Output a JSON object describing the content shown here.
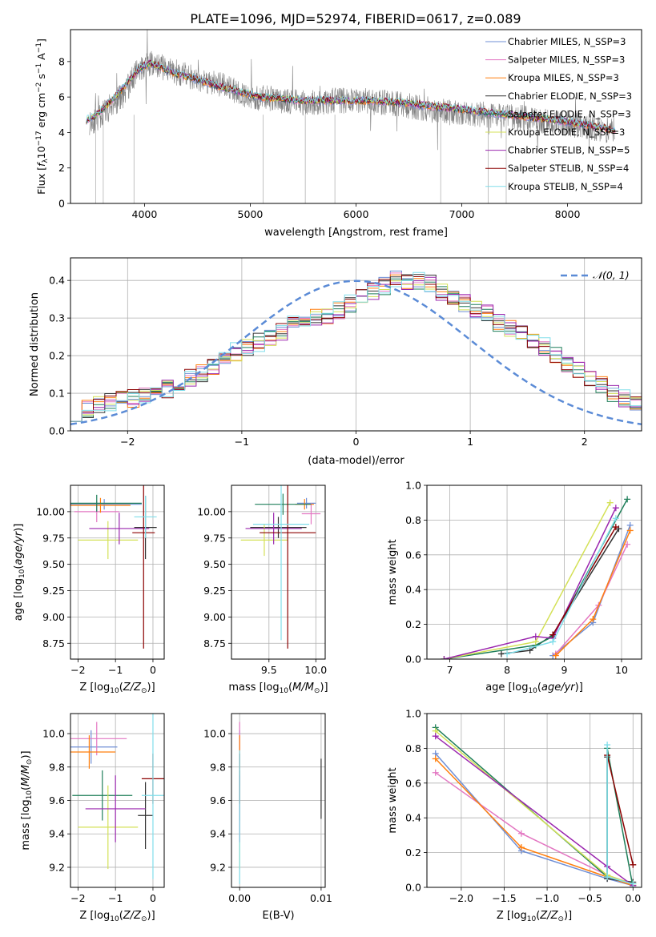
{
  "figure_title": "PLATE=1096, MJD=52974, FIBERID=0617, z=0.089",
  "model_colors": [
    "#6f8fd6",
    "#e377c2",
    "#ff7f0e",
    "#333333",
    "#1f7f5a",
    "#d4e157",
    "#9b27af",
    "#8b0000",
    "#80deea"
  ],
  "chart_data": [
    {
      "id": "spectrum",
      "type": "line",
      "title": "PLATE=1096, MJD=52974, FIBERID=0617, z=0.089",
      "xlabel": "wavelength [Angstrom, rest frame]",
      "ylabel": "Flux [f_λ10^-17 erg cm^-2 s^-1 A^-1]",
      "xlim": [
        3300,
        8700
      ],
      "ylim": [
        0,
        9.8
      ],
      "xticks": [
        "4000",
        "5000",
        "6000",
        "7000",
        "8000"
      ],
      "yticks": [
        "0",
        "2",
        "4",
        "6",
        "8"
      ],
      "grid": false,
      "legend_position": "top-right",
      "data_curve": {
        "name": "data",
        "color": "#808080",
        "x": [
          3500,
          3600,
          3700,
          3800,
          3900,
          4000,
          4100,
          4200,
          4300,
          4400,
          4500,
          4600,
          4700,
          4800,
          4900,
          5000,
          5200,
          5400,
          5600,
          5800,
          6000,
          6200,
          6400,
          6600,
          6800,
          7000,
          7200,
          7400,
          7600,
          7800,
          8000,
          8200,
          8400
        ],
        "y": [
          4.6,
          5.0,
          5.6,
          6.1,
          7.2,
          7.8,
          7.9,
          7.6,
          7.4,
          7.2,
          7.0,
          6.9,
          6.7,
          6.5,
          6.2,
          6.0,
          5.9,
          5.7,
          5.7,
          5.8,
          5.8,
          5.7,
          5.6,
          5.4,
          5.2,
          5.1,
          5.0,
          4.9,
          4.8,
          4.6,
          4.5,
          4.3,
          4.1
        ]
      },
      "model_curve": {
        "x": [
          3450,
          3550,
          3650,
          3750,
          3850,
          3950,
          4050,
          4150,
          4300,
          4500,
          4700,
          4900,
          5100,
          5300,
          5500,
          5800,
          6100,
          6400,
          6700,
          7000,
          7300,
          7600,
          7900,
          8200,
          8450
        ],
        "y": [
          4.7,
          5.0,
          5.6,
          6.2,
          6.9,
          7.6,
          7.9,
          7.7,
          7.3,
          7.0,
          6.6,
          6.3,
          6.0,
          5.9,
          5.8,
          5.8,
          5.8,
          5.7,
          5.5,
          5.3,
          5.1,
          4.9,
          4.7,
          4.4,
          4.1
        ]
      },
      "series": [
        {
          "name": "Chabrier MILES, N_SSP=3",
          "color": "#6f8fd6"
        },
        {
          "name": "Salpeter MILES, N_SSP=3",
          "color": "#e377c2"
        },
        {
          "name": "Kroupa MILES, N_SSP=3",
          "color": "#ff7f0e"
        },
        {
          "name": "Chabrier ELODIE, N_SSP=3",
          "color": "#333333"
        },
        {
          "name": "Salpeter ELODIE, N_SSP=3",
          "color": "#1f7f5a"
        },
        {
          "name": "Kroupa ELODIE, N_SSP=3",
          "color": "#d4e157"
        },
        {
          "name": "Chabrier STELIB, N_SSP=5",
          "color": "#9b27af"
        },
        {
          "name": "Salpeter STELIB, N_SSP=4",
          "color": "#8b0000"
        },
        {
          "name": "Kroupa STELIB, N_SSP=4",
          "color": "#80deea"
        }
      ]
    },
    {
      "id": "residuals",
      "type": "line",
      "xlabel": "(data-model)/error",
      "ylabel": "Normed distribution",
      "xlim": [
        -2.5,
        2.5
      ],
      "ylim": [
        0,
        0.46
      ],
      "xticks": [
        "−2",
        "−1",
        "0",
        "1",
        "2"
      ],
      "yticks": [
        "0.0",
        "0.1",
        "0.2",
        "0.3",
        "0.4"
      ],
      "grid": true,
      "legend_position": "top-right",
      "reference": {
        "name": "𝒩(0, 1)",
        "mean": 0,
        "sigma": 1,
        "color": "#5b8bd6"
      },
      "histogram": {
        "bin_width": 0.1,
        "x_start": -2.5,
        "approx_heights": [
          0.05,
          0.06,
          0.07,
          0.075,
          0.08,
          0.085,
          0.09,
          0.1,
          0.11,
          0.125,
          0.14,
          0.155,
          0.175,
          0.19,
          0.21,
          0.22,
          0.235,
          0.25,
          0.265,
          0.28,
          0.29,
          0.3,
          0.31,
          0.32,
          0.34,
          0.36,
          0.37,
          0.385,
          0.4,
          0.4,
          0.4,
          0.39,
          0.37,
          0.36,
          0.34,
          0.32,
          0.31,
          0.29,
          0.27,
          0.255,
          0.24,
          0.225,
          0.2,
          0.18,
          0.16,
          0.14,
          0.12,
          0.1,
          0.085,
          0.07
        ]
      }
    },
    {
      "id": "age-vs-Z",
      "type": "scatter",
      "xlabel": "Z [log10(Z/Z⊙)]",
      "ylabel": "age  [log10(age/yr)]",
      "xlim": [
        -2.2,
        0.3
      ],
      "ylim": [
        8.6,
        10.25
      ],
      "xticks": [
        "−2",
        "−1",
        "0"
      ],
      "yticks": [
        "8.75",
        "9.00",
        "9.25",
        "9.50",
        "9.75",
        "10.00"
      ],
      "grid": true,
      "points": [
        {
          "x": -1.3,
          "y": 10.07,
          "xerr": 1.0,
          "yerr": 0.05
        },
        {
          "x": -1.5,
          "y": 10.0,
          "xerr": 0.6,
          "yerr": 0.1
        },
        {
          "x": -1.4,
          "y": 10.06,
          "xerr": 0.8,
          "yerr": 0.07
        },
        {
          "x": -0.2,
          "y": 9.85,
          "xerr": 0.3,
          "yerr": 0.3
        },
        {
          "x": -1.5,
          "y": 10.08,
          "xerr": 1.2,
          "yerr": 0.08
        },
        {
          "x": -1.2,
          "y": 9.73,
          "xerr": 0.8,
          "yerr": 0.18
        },
        {
          "x": -0.9,
          "y": 9.84,
          "xerr": 0.8,
          "yerr": 0.15
        },
        {
          "x": -0.25,
          "y": 9.8,
          "xerr": 0.3,
          "yerr": 1.1
        },
        {
          "x": -0.2,
          "y": 9.95,
          "xerr": 0.3,
          "yerr": 0.2
        }
      ]
    },
    {
      "id": "age-vs-mass",
      "type": "scatter",
      "xlabel": "mass [log10(M/M⊙)]",
      "ylabel": "",
      "xlim": [
        9.1,
        10.1
      ],
      "ylim": [
        8.6,
        10.25
      ],
      "xticks": [
        "9.5",
        "10.0"
      ],
      "yticks": [
        "8.75",
        "9.00",
        "9.25",
        "9.50",
        "9.75",
        "10.00"
      ],
      "grid": true,
      "points": [
        {
          "x": 9.9,
          "y": 10.08,
          "xerr": 0.1,
          "yerr": 0.05
        },
        {
          "x": 9.95,
          "y": 9.98,
          "xerr": 0.1,
          "yerr": 0.1
        },
        {
          "x": 9.88,
          "y": 10.07,
          "xerr": 0.1,
          "yerr": 0.05
        },
        {
          "x": 9.6,
          "y": 9.85,
          "xerr": 0.3,
          "yerr": 0.1
        },
        {
          "x": 9.65,
          "y": 10.07,
          "xerr": 0.3,
          "yerr": 0.1
        },
        {
          "x": 9.45,
          "y": 9.73,
          "xerr": 0.25,
          "yerr": 0.15
        },
        {
          "x": 9.55,
          "y": 9.84,
          "xerr": 0.3,
          "yerr": 0.15
        },
        {
          "x": 9.7,
          "y": 9.8,
          "xerr": 0.3,
          "yerr": 1.1
        },
        {
          "x": 9.63,
          "y": 9.88,
          "xerr": 0.3,
          "yerr": 1.1
        }
      ]
    },
    {
      "id": "weight-vs-age",
      "type": "line",
      "xlabel": "age  [log10(age/yr)]",
      "ylabel": "mass weight",
      "xlim": [
        6.6,
        10.35
      ],
      "ylim": [
        0,
        1.0
      ],
      "xticks": [
        "7",
        "8",
        "9",
        "10"
      ],
      "yticks": [
        "0.0",
        "0.2",
        "0.4",
        "0.6",
        "0.8",
        "1.0"
      ],
      "grid": true,
      "series": [
        {
          "x": [
            8.8,
            9.5,
            10.15
          ],
          "y": [
            0.02,
            0.21,
            0.77
          ]
        },
        {
          "x": [
            8.85,
            9.6,
            10.1
          ],
          "y": [
            0.03,
            0.31,
            0.66
          ]
        },
        {
          "x": [
            8.85,
            9.5,
            10.15
          ],
          "y": [
            0.02,
            0.23,
            0.74
          ]
        },
        {
          "x": [
            7.9,
            8.4,
            8.8,
            9.95
          ],
          "y": [
            0.03,
            0.05,
            0.14,
            0.75
          ]
        },
        {
          "x": [
            6.9,
            8.5,
            8.8,
            10.1
          ],
          "y": [
            0.0,
            0.08,
            0.13,
            0.92
          ]
        },
        {
          "x": [
            6.9,
            8.5,
            9.8
          ],
          "y": [
            0.0,
            0.1,
            0.9
          ]
        },
        {
          "x": [
            6.9,
            8.5,
            8.8,
            9.9
          ],
          "y": [
            0.0,
            0.13,
            0.12,
            0.87
          ]
        },
        {
          "x": [
            8.8,
            9.9
          ],
          "y": [
            0.14,
            0.76
          ]
        },
        {
          "x": [
            8.0,
            8.8,
            9.9
          ],
          "y": [
            0.03,
            0.1,
            0.81
          ]
        }
      ]
    },
    {
      "id": "mass-vs-Z",
      "type": "scatter",
      "xlabel": "Z [log10(Z/Z⊙)]",
      "ylabel": "mass [log10(M/M⊙)]",
      "xlim": [
        -2.2,
        0.3
      ],
      "ylim": [
        9.08,
        10.12
      ],
      "xticks": [
        "−2",
        "−1",
        "0"
      ],
      "yticks": [
        "9.2",
        "9.4",
        "9.6",
        "9.8",
        "10.0"
      ],
      "grid": true,
      "points": [
        {
          "x": -1.65,
          "y": 9.92,
          "xerr": 0.7,
          "yerr": 0.1
        },
        {
          "x": -1.5,
          "y": 9.97,
          "xerr": 0.8,
          "yerr": 0.1
        },
        {
          "x": -1.7,
          "y": 9.89,
          "xerr": 0.7,
          "yerr": 0.1
        },
        {
          "x": -0.2,
          "y": 9.51,
          "xerr": 0.2,
          "yerr": 0.2
        },
        {
          "x": -1.35,
          "y": 9.63,
          "xerr": 0.8,
          "yerr": 0.15
        },
        {
          "x": -1.2,
          "y": 9.44,
          "xerr": 0.8,
          "yerr": 0.25
        },
        {
          "x": -1.0,
          "y": 9.55,
          "xerr": 0.8,
          "yerr": 0.2
        },
        {
          "x": 0.0,
          "y": 9.73,
          "xerr": 0.3,
          "yerr": 0.15
        },
        {
          "x": 0.0,
          "y": 9.63,
          "xerr": 0.3,
          "yerr": 0.5
        }
      ]
    },
    {
      "id": "mass-vs-ebv",
      "type": "scatter",
      "xlabel": "E(B-V)",
      "ylabel": "",
      "xlim": [
        -0.001,
        0.0105
      ],
      "ylim": [
        9.08,
        10.12
      ],
      "xticks": [
        "0.00",
        "0.01"
      ],
      "yticks": [
        "9.2",
        "9.4",
        "9.6",
        "9.8",
        "10.0"
      ],
      "grid": true,
      "points": [
        {
          "x": 0.0,
          "y": 9.92,
          "xerr": 0,
          "yerr": 0.1
        },
        {
          "x": 0.0,
          "y": 9.97,
          "xerr": 0,
          "yerr": 0.1
        },
        {
          "x": 0.0,
          "y": 9.89,
          "xerr": 0,
          "yerr": 0.1
        },
        {
          "x": 0.01,
          "y": 9.67,
          "xerr": 0,
          "yerr": 0.18
        },
        {
          "x": 0.0,
          "y": 9.63,
          "xerr": 0,
          "yerr": 0.15
        },
        {
          "x": 0.0,
          "y": 9.44,
          "xerr": 0,
          "yerr": 0.25
        },
        {
          "x": 0.0,
          "y": 9.55,
          "xerr": 0,
          "yerr": 0.2
        },
        {
          "x": 0.0,
          "y": 9.73,
          "xerr": 0,
          "yerr": 0.15
        },
        {
          "x": 0.0,
          "y": 9.5,
          "xerr": 0,
          "yerr": 0.4
        }
      ]
    },
    {
      "id": "weight-vs-Z",
      "type": "line",
      "xlabel": "Z [log10(Z/Z⊙)]",
      "ylabel": "mass weight",
      "xlim": [
        -2.4,
        0.1
      ],
      "ylim": [
        0,
        1.0
      ],
      "xticks": [
        "−2.0",
        "−1.5",
        "−1.0",
        "−0.5",
        "0.0"
      ],
      "yticks": [
        "0.0",
        "0.2",
        "0.4",
        "0.6",
        "0.8",
        "1.0"
      ],
      "grid": true,
      "series": [
        {
          "x": [
            -2.3,
            -1.3,
            -0.3,
            0.0
          ],
          "y": [
            0.77,
            0.21,
            0.05,
            0.01
          ]
        },
        {
          "x": [
            -2.3,
            -1.3,
            -0.3,
            0.0
          ],
          "y": [
            0.66,
            0.31,
            0.07,
            0.02
          ]
        },
        {
          "x": [
            -2.3,
            -1.3,
            -0.3,
            0.0
          ],
          "y": [
            0.74,
            0.23,
            0.06,
            0.01
          ]
        },
        {
          "x": [
            -0.3,
            -0.3,
            0.0
          ],
          "y": [
            0.75,
            0.05,
            0.03
          ]
        },
        {
          "x": [
            -2.3,
            -0.3,
            -0.3,
            0.0
          ],
          "y": [
            0.92,
            0.06,
            0.8,
            0.0
          ]
        },
        {
          "x": [
            -2.3,
            -0.3,
            0.0
          ],
          "y": [
            0.9,
            0.07,
            0.02
          ]
        },
        {
          "x": [
            -2.3,
            -0.3,
            0.0
          ],
          "y": [
            0.87,
            0.12,
            0.01
          ]
        },
        {
          "x": [
            -0.3,
            0.0
          ],
          "y": [
            0.76,
            0.13
          ]
        },
        {
          "x": [
            -0.3,
            -0.3,
            0.0
          ],
          "y": [
            0.82,
            0.06,
            0.02
          ]
        }
      ]
    }
  ]
}
